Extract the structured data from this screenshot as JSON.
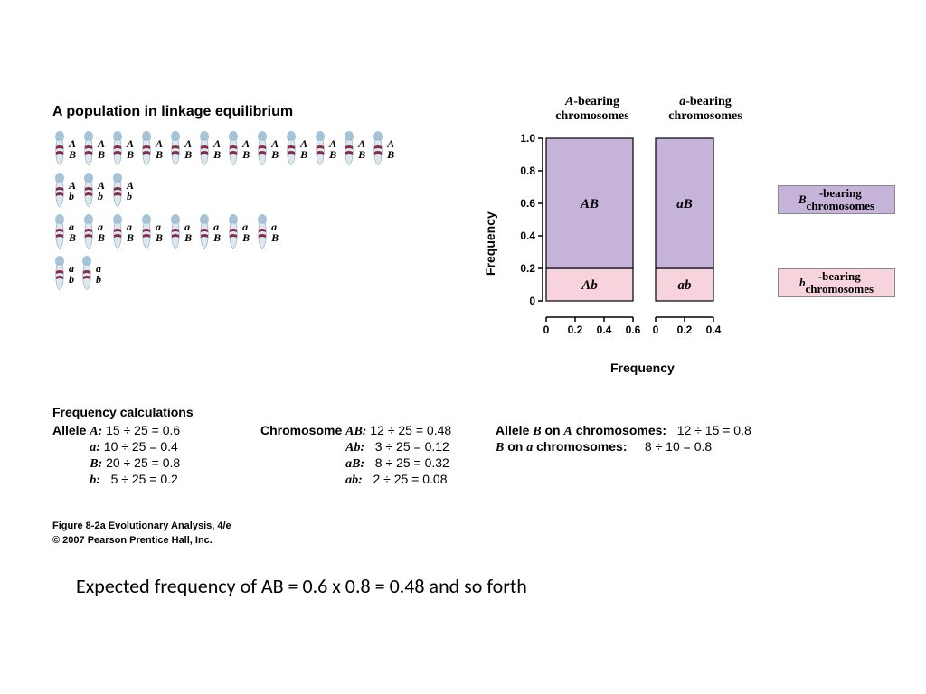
{
  "title": "A population in linkage equilibrium",
  "colors": {
    "pin_head": "#a5c3d9",
    "pin_body": "#dce8ef",
    "pin_stripe": "#8b2b4a",
    "B_fill": "#c5b3da",
    "b_fill": "#f6d3dd",
    "axis": "#000000",
    "border": "#8a8a8a"
  },
  "pin_rows": [
    {
      "top": "A",
      "bottom": "B",
      "count": 12
    },
    {
      "top": "A",
      "bottom": "b",
      "count": 3
    },
    {
      "top": "a",
      "bottom": "B",
      "count": 8
    },
    {
      "top": "a",
      "bottom": "b",
      "count": 2
    }
  ],
  "chart": {
    "col1_title_html": "<span style='font-style:italic'>A</span>-bearing<br>chromosomes",
    "col2_title_html": "<span style='font-style:italic'>a</span>-bearing<br>chromosomes",
    "y_axis_label": "Frequency",
    "x_axis_label": "Frequency",
    "y_ticks": [
      "0",
      "0.2",
      "0.4",
      "0.6",
      "0.8",
      "1.0"
    ],
    "col1": {
      "width_val": 0.6,
      "x_ticks": [
        "0",
        "0.2",
        "0.4",
        "0.6"
      ],
      "top_label": "AB",
      "bot_label": "Ab",
      "split": 0.2
    },
    "col2": {
      "width_val": 0.4,
      "x_ticks": [
        "0",
        "0.2",
        "0.4"
      ],
      "top_label": "aB",
      "bot_label": "ab",
      "split": 0.2
    },
    "legend_B_html": "<span style='font-style:italic'>B</span>-bearing<br>chromosomes",
    "legend_b_html": "<span style='font-style:italic'>b</span>-bearing<br>chromosomes"
  },
  "freq": {
    "heading": "Frequency calculations",
    "col1": {
      "sub": "Allele",
      "lines": [
        {
          "lbl": "A:",
          "calc": "15 ÷ 25 = 0.6"
        },
        {
          "lbl": "a:",
          "calc": "10 ÷ 25 = 0.4"
        },
        {
          "lbl": "B:",
          "calc": "20 ÷ 25 = 0.8"
        },
        {
          "lbl": "b:",
          "calc": "  5 ÷ 25 = 0.2"
        }
      ]
    },
    "col2": {
      "sub": "Chromosome",
      "lines": [
        {
          "lbl": "AB:",
          "calc": "12 ÷ 25 = 0.48"
        },
        {
          "lbl": "Ab:",
          "calc": "  3 ÷ 25 = 0.12"
        },
        {
          "lbl": "aB:",
          "calc": "  8 ÷ 25 = 0.32"
        },
        {
          "lbl": "ab:",
          "calc": "  2 ÷ 25 = 0.08"
        }
      ]
    },
    "col3": {
      "lines": [
        {
          "pre": "Allele ",
          "lbl": "B",
          "mid": " on ",
          "lbl2": "A",
          "post": " chromosomes:",
          "calc": "12 ÷ 15 = 0.8"
        },
        {
          "pre": "",
          "lbl": "B",
          "mid": " on ",
          "lbl2": "a",
          "post": " chromosomes:",
          "calc": "  8 ÷ 10 = 0.8"
        }
      ]
    }
  },
  "caption": "Figure 8-2a  Evolutionary Analysis, 4/e",
  "copyright": "© 2007 Pearson Prentice Hall, Inc.",
  "bottom_note": "Expected frequency of AB = 0.6 x 0.8 = 0.48 and so forth"
}
